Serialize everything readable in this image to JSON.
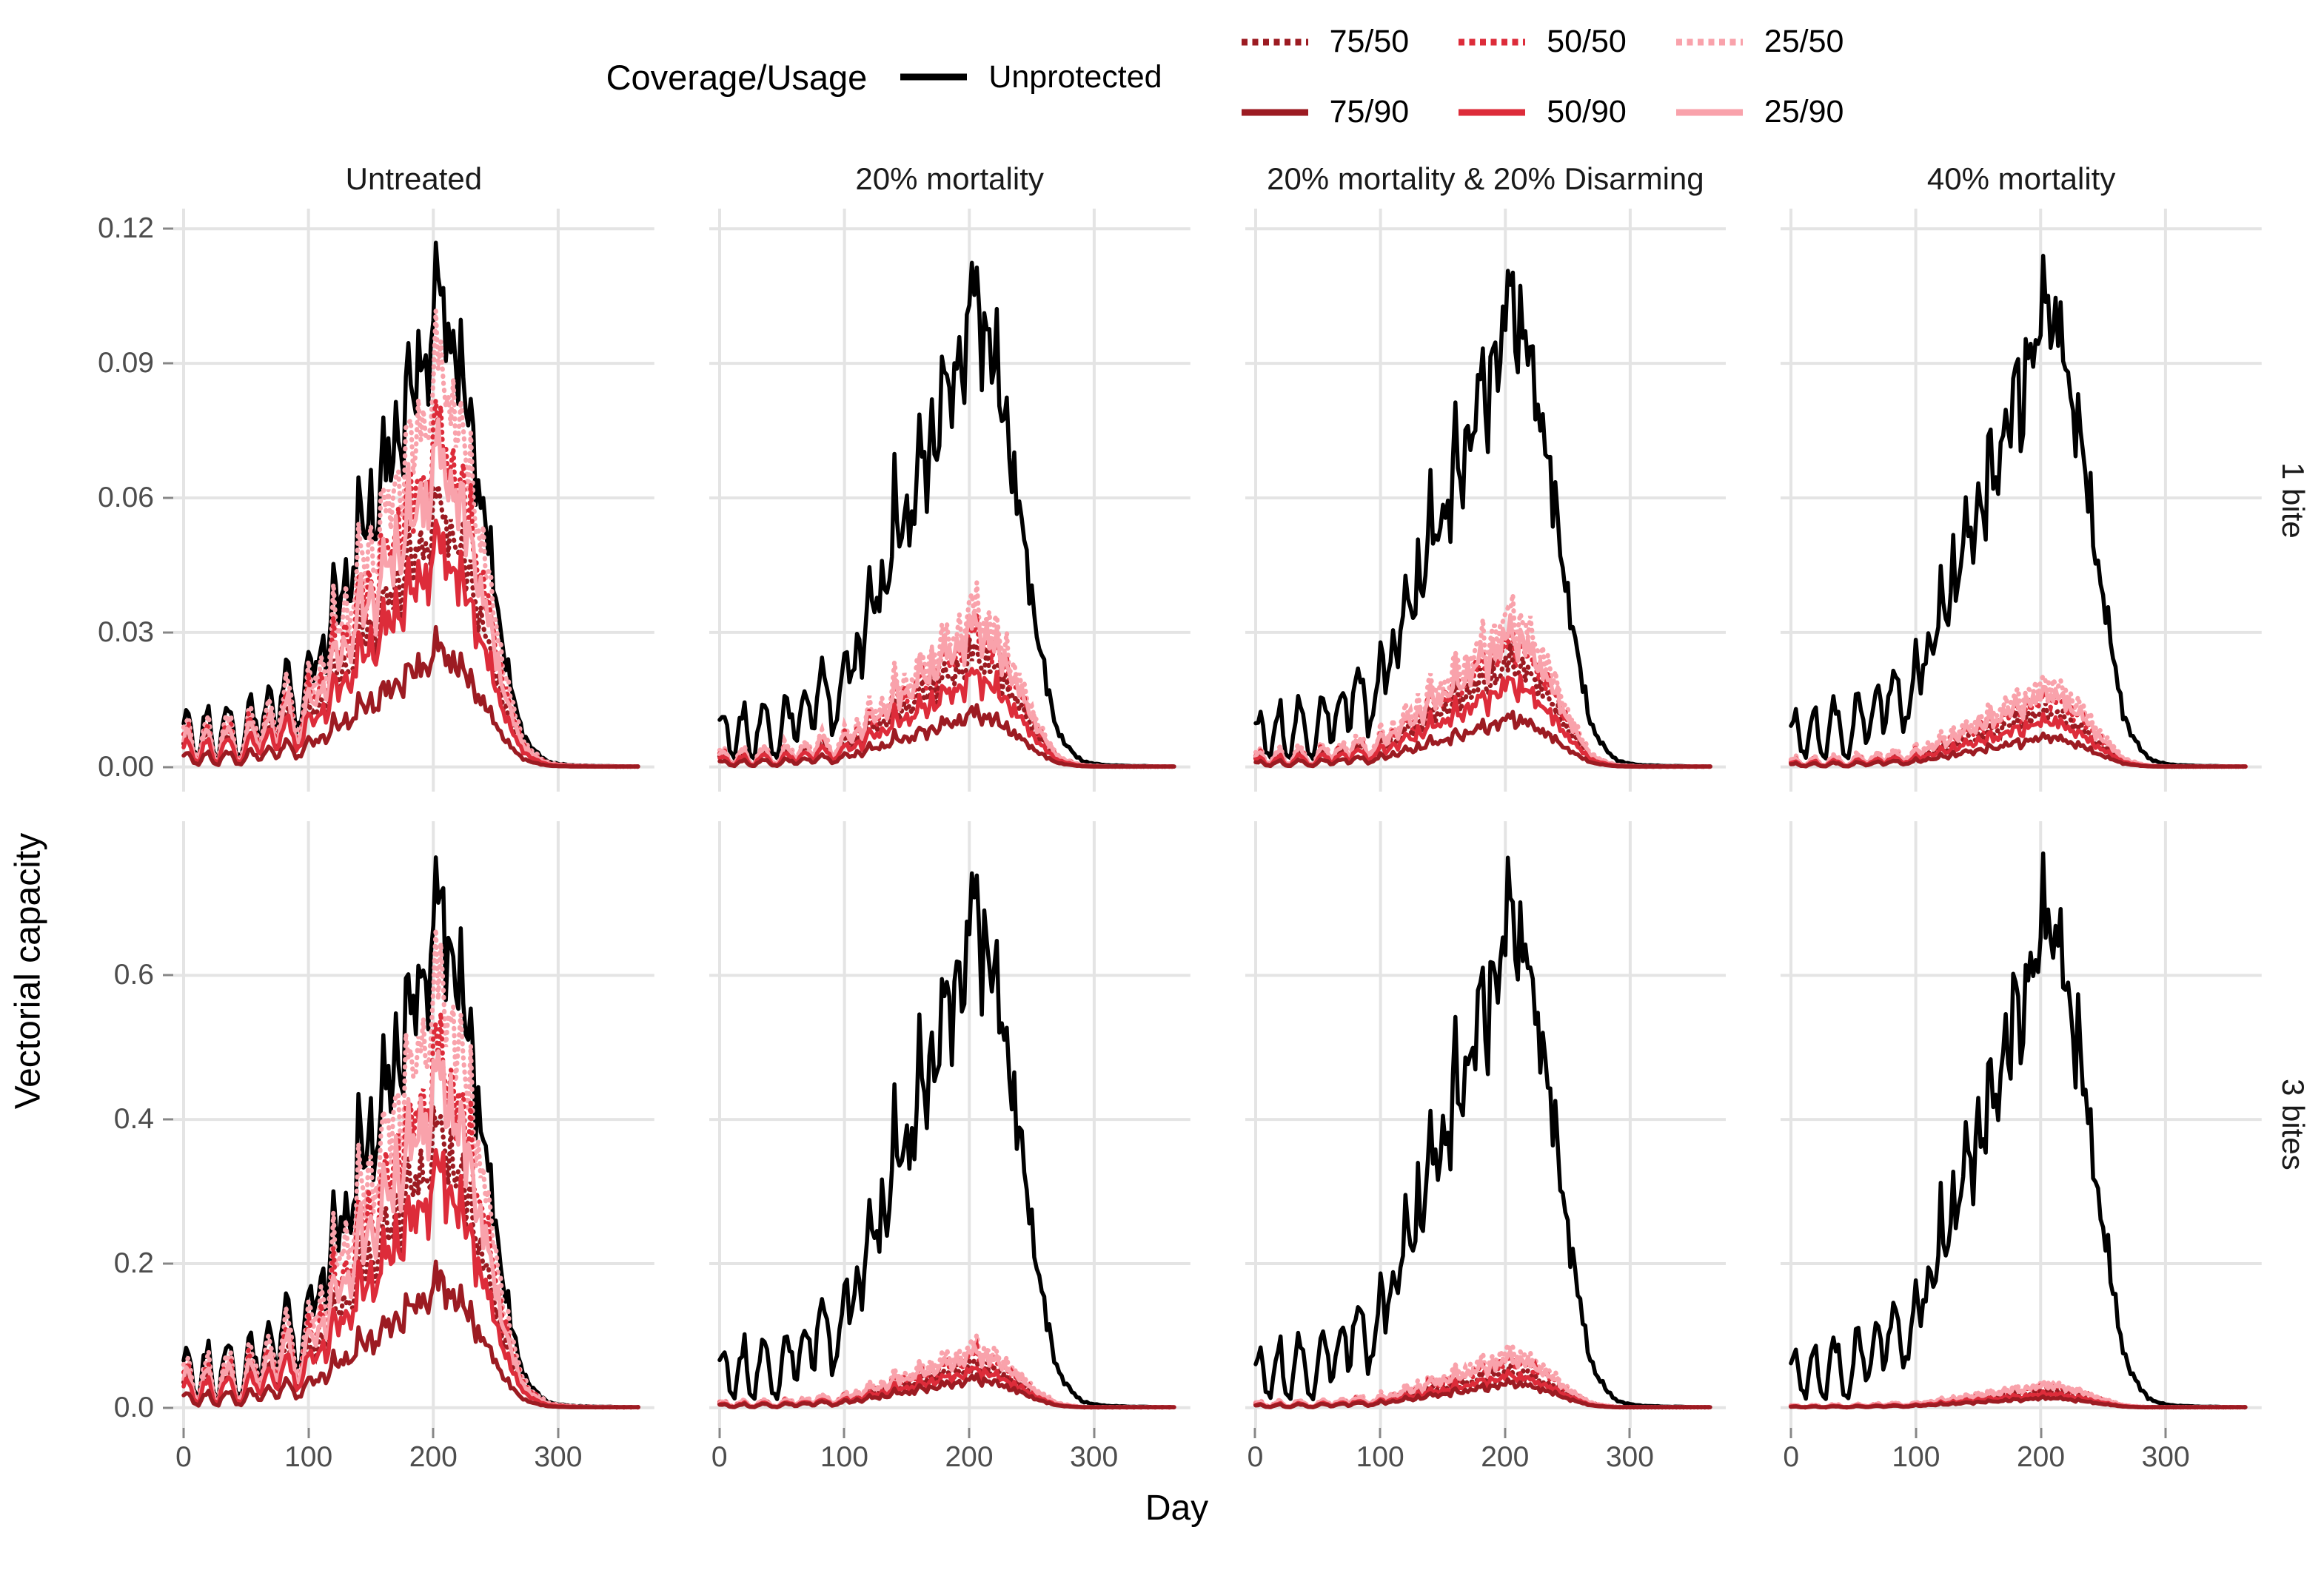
{
  "legend": {
    "title": "Coverage/Usage",
    "entries": [
      {
        "label": "Unprotected",
        "color": "#000000",
        "style": "solid"
      },
      {
        "label": "75/50",
        "color": "#9C1B22",
        "style": "dotted"
      },
      {
        "label": "50/50",
        "color": "#DD2C3A",
        "style": "dotted"
      },
      {
        "label": "25/50",
        "color": "#F9A2AB",
        "style": "dotted"
      },
      {
        "label": "75/90",
        "color": "#9C1B22",
        "style": "solid"
      },
      {
        "label": "50/90",
        "color": "#DD2C3A",
        "style": "solid"
      },
      {
        "label": "25/90",
        "color": "#F9A2AB",
        "style": "solid"
      }
    ]
  },
  "chart_data": {
    "type": "line",
    "xlabel": "Day",
    "ylabel": "Vectorial capacity",
    "grid": "major-only",
    "gridline_color": "#E4E4E4",
    "facets": {
      "columns": [
        "Untreated",
        "20% mortality",
        "20% mortality & 20% Disarming",
        "40% mortality"
      ],
      "rows": [
        "1 bite",
        "3 bites"
      ]
    },
    "x_ticks": {
      "values": [
        0,
        100,
        200,
        300
      ],
      "labels": [
        "0",
        "100",
        "200",
        "300"
      ]
    },
    "x_range": [
      0,
      365
    ],
    "row_axes": [
      {
        "row": "1 bite",
        "tick_values": [
          0.0,
          0.03,
          0.06,
          0.09,
          0.12
        ],
        "tick_labels": [
          "0.00",
          "0.03",
          "0.06",
          "0.09",
          "0.12"
        ],
        "y_range": [
          -0.0055,
          0.1245
        ]
      },
      {
        "row": "3 bites",
        "tick_values": [
          0.0,
          0.2,
          0.4,
          0.6
        ],
        "tick_labels": [
          "0.0",
          "0.2",
          "0.4",
          "0.6"
        ],
        "y_range": [
          -0.028,
          0.814
        ]
      }
    ],
    "series_order": [
      "Unprotected",
      "25/50",
      "50/50",
      "75/50",
      "25/90",
      "50/90",
      "75/90"
    ],
    "unprotected_base_curve": {
      "note": "Unprotected vectorial capacity, 1-bite row; estimated control points read from figure",
      "day": [
        0,
        4,
        8,
        12,
        16,
        20,
        24,
        28,
        33,
        38,
        42,
        47,
        52,
        57,
        61,
        66,
        70,
        75,
        80,
        85,
        90,
        95,
        100,
        105,
        110,
        115,
        120,
        125,
        130,
        135,
        140,
        145,
        150,
        155,
        160,
        165,
        170,
        175,
        180,
        185,
        190,
        195,
        200,
        203,
        206,
        210,
        214,
        218,
        222,
        226,
        230,
        235,
        240,
        245,
        250,
        255,
        260,
        265,
        270,
        275,
        280,
        285,
        290,
        295,
        300,
        310,
        320,
        330,
        340,
        350,
        360,
        365
      ],
      "value": [
        0.009,
        0.013,
        0.004,
        0.002,
        0.01,
        0.013,
        0.003,
        0.002,
        0.014,
        0.012,
        0.003,
        0.002,
        0.016,
        0.012,
        0.004,
        0.015,
        0.018,
        0.006,
        0.02,
        0.022,
        0.008,
        0.012,
        0.026,
        0.018,
        0.03,
        0.022,
        0.042,
        0.032,
        0.046,
        0.036,
        0.06,
        0.048,
        0.062,
        0.05,
        0.075,
        0.06,
        0.08,
        0.068,
        0.092,
        0.075,
        0.098,
        0.085,
        0.1,
        0.112,
        0.106,
        0.095,
        0.102,
        0.087,
        0.091,
        0.077,
        0.081,
        0.064,
        0.057,
        0.047,
        0.039,
        0.029,
        0.021,
        0.014,
        0.009,
        0.006,
        0.004,
        0.0025,
        0.0015,
        0.001,
        0.0007,
        0.0004,
        0.0003,
        0.0002,
        0.0002,
        0.0001,
        0.0001,
        0.0001
      ]
    },
    "unprotected_row_scale": {
      "1 bite": 1.0,
      "3 bites": 6.6
    },
    "panels": [
      {
        "column": "Untreated",
        "row": "1 bite",
        "multipliers": {
          "25/50": 0.85,
          "50/50": 0.71,
          "75/50": 0.55,
          "25/90": 0.66,
          "50/90": 0.47,
          "75/90": 0.25
        }
      },
      {
        "column": "20% mortality",
        "row": "1 bite",
        "multipliers": {
          "25/50": 0.34,
          "50/50": 0.285,
          "75/50": 0.24,
          "25/90": 0.3,
          "50/90": 0.195,
          "75/90": 0.115
        }
      },
      {
        "column": "20% mortality & 20% Disarming",
        "row": "1 bite",
        "multipliers": {
          "25/50": 0.33,
          "50/50": 0.27,
          "75/50": 0.225,
          "25/90": 0.285,
          "50/90": 0.18,
          "75/90": 0.105
        }
      },
      {
        "column": "40% mortality",
        "row": "1 bite",
        "multipliers": {
          "25/50": 0.185,
          "50/50": 0.15,
          "75/50": 0.12,
          "25/90": 0.16,
          "50/90": 0.1,
          "75/90": 0.065
        }
      },
      {
        "column": "Untreated",
        "row": "3 bites",
        "multipliers": {
          "25/50": 0.85,
          "50/50": 0.71,
          "75/50": 0.55,
          "25/90": 0.66,
          "50/90": 0.47,
          "75/90": 0.25
        }
      },
      {
        "column": "20% mortality",
        "row": "3 bites",
        "multipliers": {
          "25/50": 0.125,
          "50/50": 0.105,
          "75/50": 0.085,
          "25/90": 0.11,
          "50/90": 0.075,
          "75/90": 0.058
        }
      },
      {
        "column": "20% mortality & 20% Disarming",
        "row": "3 bites",
        "multipliers": {
          "25/50": 0.115,
          "50/50": 0.095,
          "75/50": 0.075,
          "25/90": 0.1,
          "50/90": 0.065,
          "75/90": 0.05
        }
      },
      {
        "column": "40% mortality",
        "row": "3 bites",
        "multipliers": {
          "25/50": 0.05,
          "50/50": 0.042,
          "75/50": 0.033,
          "25/90": 0.045,
          "50/90": 0.028,
          "75/90": 0.02
        }
      }
    ]
  }
}
